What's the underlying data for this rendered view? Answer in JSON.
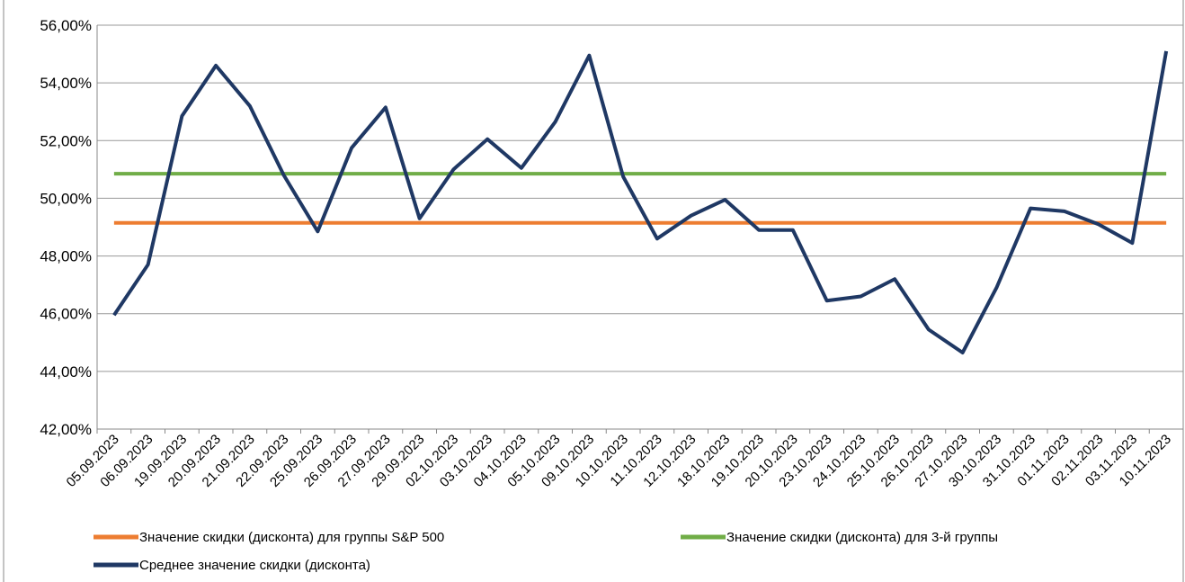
{
  "chart_data": {
    "type": "line",
    "categories": [
      "05.09.2023",
      "06.09.2023",
      "19.09.2023",
      "20.09.2023",
      "21.09.2023",
      "22.09.2023",
      "25.09.2023",
      "26.09.2023",
      "27.09.2023",
      "29.09.2023",
      "02.10.2023",
      "03.10.2023",
      "04.10.2023",
      "05.10.2023",
      "09.10.2023",
      "10.10.2023",
      "11.10.2023",
      "12.10.2023",
      "18.10.2023",
      "19.10.2023",
      "20.10.2023",
      "23.10.2023",
      "24.10.2023",
      "25.10.2023",
      "26.10.2023",
      "27.10.2023",
      "30.10.2023",
      "31.10.2023",
      "01.11.2023",
      "02.11.2023",
      "03.11.2023",
      "10.11.2023"
    ],
    "series": [
      {
        "name": "Значение скидки (дисконта) для группы S&P 500",
        "color": "#ed7d31",
        "values": [
          49.15,
          49.15,
          49.15,
          49.15,
          49.15,
          49.15,
          49.15,
          49.15,
          49.15,
          49.15,
          49.15,
          49.15,
          49.15,
          49.15,
          49.15,
          49.15,
          49.15,
          49.15,
          49.15,
          49.15,
          49.15,
          49.15,
          49.15,
          49.15,
          49.15,
          49.15,
          49.15,
          49.15,
          49.15,
          49.15,
          49.15,
          49.15
        ]
      },
      {
        "name": "Значение скидки (дисконта) для 3-й группы",
        "color": "#70ad47",
        "values": [
          50.85,
          50.85,
          50.85,
          50.85,
          50.85,
          50.85,
          50.85,
          50.85,
          50.85,
          50.85,
          50.85,
          50.85,
          50.85,
          50.85,
          50.85,
          50.85,
          50.85,
          50.85,
          50.85,
          50.85,
          50.85,
          50.85,
          50.85,
          50.85,
          50.85,
          50.85,
          50.85,
          50.85,
          50.85,
          50.85,
          50.85,
          50.85
        ]
      },
      {
        "name": "Среднее значение скидки (дисконта)",
        "color": "#1f3864",
        "values": [
          45.95,
          47.7,
          52.85,
          54.6,
          53.2,
          50.8,
          48.85,
          51.75,
          53.15,
          49.3,
          51.0,
          52.05,
          51.05,
          52.65,
          54.95,
          50.75,
          48.6,
          49.4,
          49.95,
          48.9,
          48.9,
          46.45,
          46.6,
          47.2,
          45.45,
          44.65,
          46.9,
          49.65,
          49.55,
          49.1,
          48.45,
          55.1
        ]
      }
    ],
    "ylim": [
      42,
      56
    ],
    "yticks": [
      {
        "value": 42,
        "label": "42,00%"
      },
      {
        "value": 44,
        "label": "44,00%"
      },
      {
        "value": 46,
        "label": "46,00%"
      },
      {
        "value": 48,
        "label": "48,00%"
      },
      {
        "value": 50,
        "label": "50,00%"
      },
      {
        "value": 52,
        "label": "52,00%"
      },
      {
        "value": 54,
        "label": "54,00%"
      },
      {
        "value": 56,
        "label": "56,00%"
      }
    ],
    "grid": true,
    "legend": "bottom"
  }
}
